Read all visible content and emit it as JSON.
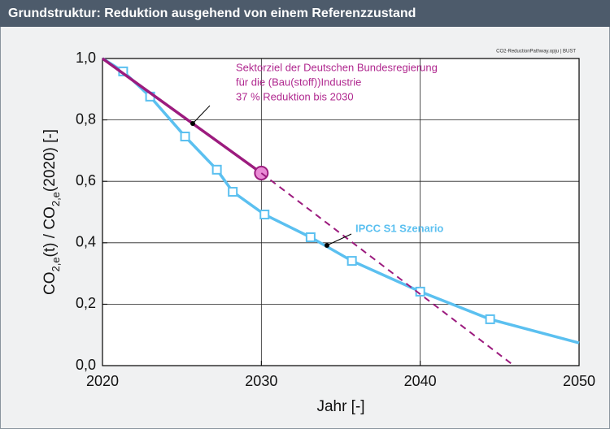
{
  "header": {
    "title": "Grundstruktur: Reduktion ausgehend von einem Referenzzustand"
  },
  "chart_data": {
    "type": "line",
    "source_note": "CO2-ReductionPathway.opju | BUST",
    "xlabel": "Jahr [-]",
    "ylabel": [
      {
        "text": "CO"
      },
      {
        "text": "2,e",
        "sub": true
      },
      {
        "text": "(t) / CO"
      },
      {
        "text": "2,e",
        "sub": true
      },
      {
        "text": "(2020) [-]"
      }
    ],
    "xlim": [
      2020,
      2050
    ],
    "xticks": [
      2020,
      2030,
      2040,
      2050
    ],
    "ylim": [
      0,
      1
    ],
    "yticks": [
      {
        "value": 0,
        "label": "0,0"
      },
      {
        "value": 0.2,
        "label": "0,2"
      },
      {
        "value": 0.4,
        "label": "0,4"
      },
      {
        "value": 0.6,
        "label": "0,6"
      },
      {
        "value": 0.8,
        "label": "0,8"
      },
      {
        "value": 1,
        "label": "1,0"
      }
    ],
    "grid": true,
    "series": [
      {
        "color": "#5bc0f0",
        "style": "solid",
        "marker": "square-interior",
        "x": [
          2020,
          2021.3,
          2023,
          2025.2,
          2027.2,
          2028.2,
          2030.2,
          2033.1,
          2035.7,
          2040,
          2044.4,
          2050
        ],
        "values": [
          1,
          0.958,
          0.876,
          0.746,
          0.638,
          0.566,
          0.492,
          0.418,
          0.341,
          0.241,
          0.151,
          0.074
        ]
      },
      {
        "color": "#9c1b7e",
        "style": "solid",
        "marker": "circle-end",
        "x": [
          2020,
          2030
        ],
        "values": [
          1,
          0.627
        ]
      },
      {
        "color": "#9c1b7e",
        "style": "dashed",
        "marker": "none",
        "x": [
          2030,
          2045.9
        ],
        "values": [
          0.627,
          0
        ]
      }
    ],
    "annotations": [
      {
        "lines": [
          "Sektorziel der Deutschen Bundesregierung",
          "für die (Bau(stoff))Industrie",
          "37 % Reduktion bis 2030"
        ],
        "color": "#b0288f"
      },
      {
        "lines": [
          "IPCC S1 Szenario"
        ],
        "color": "#5bc0f0"
      }
    ]
  }
}
